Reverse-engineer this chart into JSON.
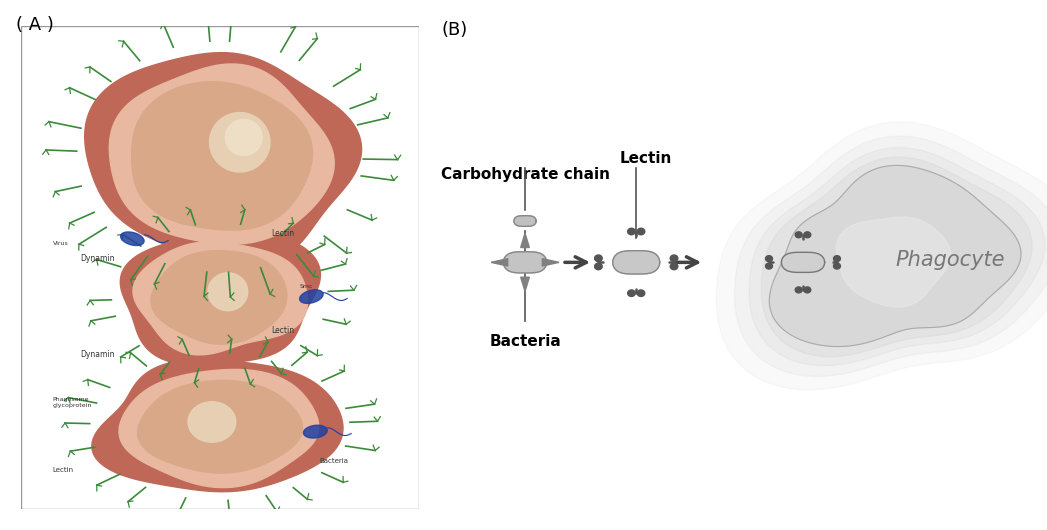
{
  "bg_color": "#ffffff",
  "label_A": "( A )",
  "label_B": "(B)",
  "carbohydrate_label": "Carbohydrate chain",
  "lectin_label": "Lectin",
  "bacteria_label": "Bacteria",
  "phagocyte_label": "Phagocyte",
  "dark_gray": "#555555",
  "mid_gray": "#888888",
  "light_gray": "#bbbbbb",
  "lens_fill": "#c0c0c0",
  "lens_fill_light": "#d8d8d8",
  "lectin_head_color": "#666666",
  "arrow_color": "#444444",
  "phagocyte_body": "#d4d4d4",
  "phagocyte_outline": "#aaaaaa",
  "font_size_label": 13,
  "font_size_annot": 11,
  "font_size_phagocyte": 15
}
